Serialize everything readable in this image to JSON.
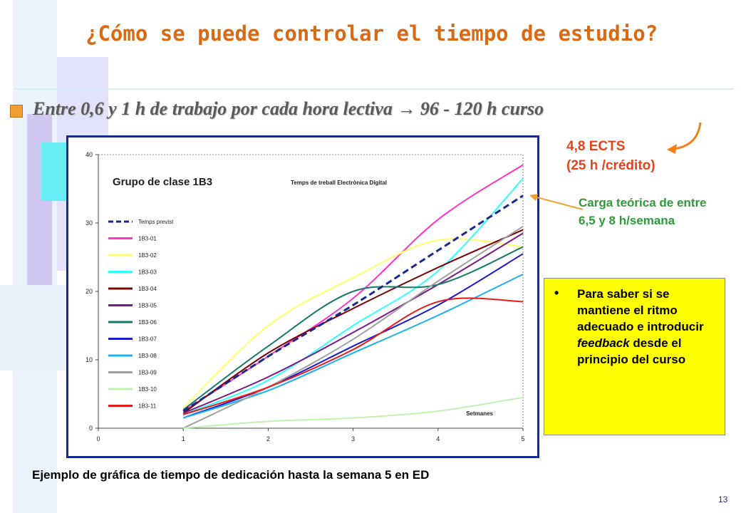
{
  "title": "¿Cómo se puede controlar el tiempo de estudio?",
  "bullet": "Entre 0,6 y 1 h de trabajo por cada hora lectiva  → 96 - 120 h curso",
  "ects_lines": [
    "4,8 ECTS",
    "(25 h /crédito)"
  ],
  "carga_text": "Carga teórica de entre 6,5 y 8 h/semana",
  "callout": {
    "bullet": "•",
    "text_before": "Para saber si se mantiene el ritmo adecuado e introducir ",
    "text_em": "feedback",
    "text_after": " desde el principio del curso"
  },
  "caption": "Ejemplo de gráfica de tiempo de dedicación hasta la semana 5 en ED",
  "page_number": "13",
  "colors": {
    "title": "#d96a14",
    "ects": "#e8421a",
    "carga": "#2f9a3a",
    "callout_bg": "#ffff00",
    "frame": "#1a2a8c"
  },
  "chart_data": {
    "type": "line",
    "title": "Temps de treball Electrònica Digital",
    "overlay_label": "Grupo de clase 1B3",
    "xlabel": "Setmanes",
    "ylabel": "",
    "xlim": [
      0,
      5
    ],
    "ylim": [
      0,
      40
    ],
    "x_ticks": [
      0,
      1,
      2,
      3,
      4,
      5
    ],
    "y_ticks": [
      0,
      10,
      20,
      30,
      40
    ],
    "legend_position": "left",
    "x": [
      1,
      2,
      3,
      4,
      5
    ],
    "series": [
      {
        "name": "Temps previst",
        "color": "#1a2a8c",
        "dashed": true,
        "values": [
          2.5,
          10.5,
          18,
          26,
          34
        ]
      },
      {
        "name": "1B3-01",
        "color": "#ff33cc",
        "values": [
          2.5,
          10.5,
          19,
          30.5,
          38.5
        ]
      },
      {
        "name": "1B3-02",
        "color": "#ffff66",
        "values": [
          3,
          15,
          22,
          27.5,
          26.5
        ]
      },
      {
        "name": "1B3-03",
        "color": "#33ffff",
        "values": [
          2,
          7,
          15,
          23,
          36.5
        ]
      },
      {
        "name": "1B3-04",
        "color": "#7a0000",
        "values": [
          2.2,
          11,
          17.5,
          23.5,
          29
        ]
      },
      {
        "name": "1B3-05",
        "color": "#7a1a8a",
        "values": [
          2.2,
          7.5,
          14,
          21,
          28.5
        ]
      },
      {
        "name": "1B3-06",
        "color": "#1a7a6a",
        "values": [
          2.7,
          12,
          20,
          21,
          26.5
        ]
      },
      {
        "name": "1B3-07",
        "color": "#1a1acc",
        "values": [
          1.5,
          6,
          12,
          18,
          25.5
        ]
      },
      {
        "name": "1B3-08",
        "color": "#1ab2f0",
        "values": [
          1.5,
          5.5,
          11,
          16.5,
          22.5
        ]
      },
      {
        "name": "1B3-09",
        "color": "#a0a0a0",
        "values": [
          0,
          6,
          13,
          21.5,
          29.5
        ]
      },
      {
        "name": "1B3-10",
        "color": "#bff2b0",
        "values": [
          0,
          1,
          1.5,
          2.5,
          4.5
        ]
      },
      {
        "name": "1B3-11",
        "color": "#e81a1a",
        "values": [
          2,
          6,
          11.5,
          18.5,
          18.5
        ]
      }
    ]
  }
}
